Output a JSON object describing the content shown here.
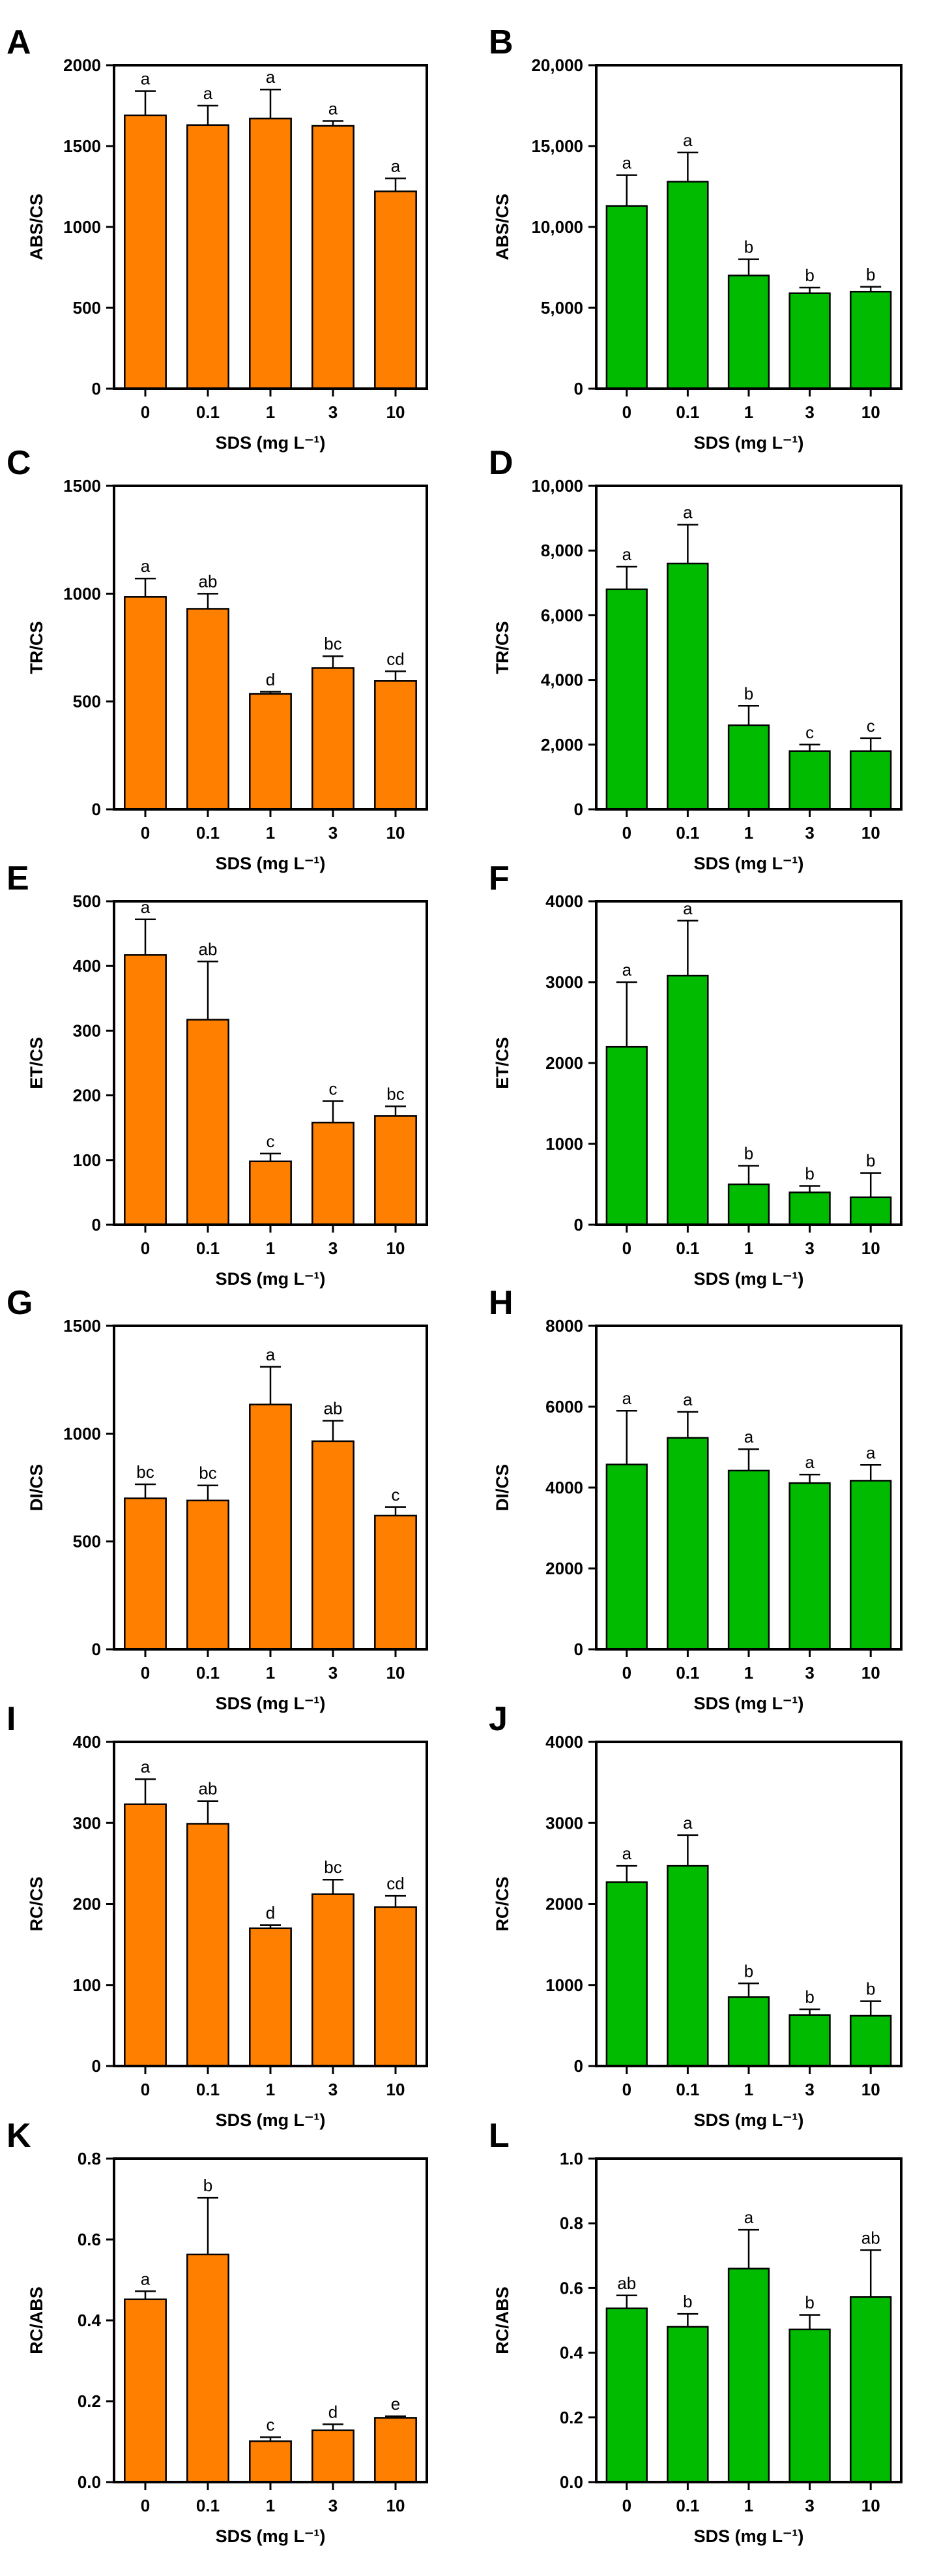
{
  "figure": {
    "x_axis_label": "SDS (mg L⁻¹)",
    "colors": {
      "orange": "#FF7F00",
      "green": "#00BB00",
      "axis": "#000000",
      "error": "#000000"
    }
  },
  "chart_data": [
    {
      "panel": "A",
      "type": "bar",
      "color": "orange",
      "categories": [
        "0",
        "0.1",
        "1",
        "3",
        "10"
      ],
      "values": [
        1690,
        1630,
        1670,
        1625,
        1220
      ],
      "errors": [
        150,
        120,
        180,
        30,
        80
      ],
      "significance": [
        "a",
        "a",
        "a",
        "a",
        "a"
      ],
      "ylabel": "ABS/CS",
      "xlabel": "SDS (mg L⁻¹)",
      "ylim": [
        0,
        2000
      ],
      "yticks": [
        0,
        500,
        1000,
        1500,
        2000
      ],
      "ytick_labels": [
        "0",
        "500",
        "1000",
        "1500",
        "2000"
      ]
    },
    {
      "panel": "B",
      "type": "bar",
      "color": "green",
      "categories": [
        "0",
        "0.1",
        "1",
        "3",
        "10"
      ],
      "values": [
        11300,
        12800,
        7000,
        5900,
        6000
      ],
      "errors": [
        1900,
        1800,
        1000,
        350,
        300
      ],
      "significance": [
        "a",
        "a",
        "b",
        "b",
        "b"
      ],
      "ylabel": "ABS/CS",
      "xlabel": "SDS (mg L⁻¹)",
      "ylim": [
        0,
        20000
      ],
      "yticks": [
        0,
        5000,
        10000,
        15000,
        20000
      ],
      "ytick_labels": [
        "0",
        "5,000",
        "10,000",
        "15,000",
        "20,000"
      ]
    },
    {
      "panel": "C",
      "type": "bar",
      "color": "orange",
      "categories": [
        "0",
        "0.1",
        "1",
        "3",
        "10"
      ],
      "values": [
        985,
        930,
        535,
        655,
        595
      ],
      "errors": [
        85,
        70,
        10,
        55,
        45
      ],
      "significance": [
        "a",
        "ab",
        "d",
        "bc",
        "cd"
      ],
      "ylabel": "TR/CS",
      "xlabel": "SDS (mg L⁻¹)",
      "ylim": [
        0,
        1500
      ],
      "yticks": [
        0,
        500,
        1000,
        1500
      ],
      "ytick_labels": [
        "0",
        "500",
        "1000",
        "1500"
      ]
    },
    {
      "panel": "D",
      "type": "bar",
      "color": "green",
      "categories": [
        "0",
        "0.1",
        "1",
        "3",
        "10"
      ],
      "values": [
        6800,
        7600,
        2600,
        1800,
        1800
      ],
      "errors": [
        700,
        1200,
        600,
        200,
        400
      ],
      "significance": [
        "a",
        "a",
        "b",
        "c",
        "c"
      ],
      "ylabel": "TR/CS",
      "xlabel": "SDS (mg L⁻¹)",
      "ylim": [
        0,
        10000
      ],
      "yticks": [
        0,
        2000,
        4000,
        6000,
        8000,
        10000
      ],
      "ytick_labels": [
        "0",
        "2,000",
        "4,000",
        "6,000",
        "8,000",
        "10,000"
      ]
    },
    {
      "panel": "E",
      "type": "bar",
      "color": "orange",
      "categories": [
        "0",
        "0.1",
        "1",
        "3",
        "10"
      ],
      "values": [
        417,
        317,
        98,
        158,
        168
      ],
      "errors": [
        55,
        90,
        12,
        33,
        15
      ],
      "significance": [
        "a",
        "ab",
        "c",
        "c",
        "bc"
      ],
      "ylabel": "ET/CS",
      "xlabel": "SDS (mg L⁻¹)",
      "ylim": [
        0,
        500
      ],
      "yticks": [
        0,
        100,
        200,
        300,
        400,
        500
      ],
      "ytick_labels": [
        "0",
        "100",
        "200",
        "300",
        "400",
        "500"
      ]
    },
    {
      "panel": "F",
      "type": "bar",
      "color": "green",
      "categories": [
        "0",
        "0.1",
        "1",
        "3",
        "10"
      ],
      "values": [
        2200,
        3080,
        500,
        400,
        340
      ],
      "errors": [
        800,
        680,
        230,
        80,
        300
      ],
      "significance": [
        "a",
        "a",
        "b",
        "b",
        "b"
      ],
      "ylabel": "ET/CS",
      "xlabel": "SDS (mg L⁻¹)",
      "ylim": [
        0,
        4000
      ],
      "yticks": [
        0,
        1000,
        2000,
        3000,
        4000
      ],
      "ytick_labels": [
        "0",
        "1000",
        "2000",
        "3000",
        "4000"
      ]
    },
    {
      "panel": "G",
      "type": "bar",
      "color": "orange",
      "categories": [
        "0",
        "0.1",
        "1",
        "3",
        "10"
      ],
      "values": [
        700,
        690,
        1135,
        965,
        620
      ],
      "errors": [
        65,
        70,
        175,
        95,
        40
      ],
      "significance": [
        "bc",
        "bc",
        "a",
        "ab",
        "c"
      ],
      "ylabel": "DI/CS",
      "xlabel": "SDS (mg L⁻¹)",
      "ylim": [
        0,
        1500
      ],
      "yticks": [
        0,
        500,
        1000,
        1500
      ],
      "ytick_labels": [
        "0",
        "500",
        "1000",
        "1500"
      ]
    },
    {
      "panel": "H",
      "type": "bar",
      "color": "green",
      "categories": [
        "0",
        "0.1",
        "1",
        "3",
        "10"
      ],
      "values": [
        4570,
        5230,
        4420,
        4110,
        4170
      ],
      "errors": [
        1330,
        640,
        530,
        210,
        390
      ],
      "significance": [
        "a",
        "a",
        "a",
        "a",
        "a"
      ],
      "ylabel": "DI/CS",
      "xlabel": "SDS (mg L⁻¹)",
      "ylim": [
        0,
        8000
      ],
      "yticks": [
        0,
        2000,
        4000,
        6000,
        8000
      ],
      "ytick_labels": [
        "0",
        "2000",
        "4000",
        "6000",
        "8000"
      ]
    },
    {
      "panel": "I",
      "type": "bar",
      "color": "orange",
      "categories": [
        "0",
        "0.1",
        "1",
        "3",
        "10"
      ],
      "values": [
        323,
        299,
        170,
        212,
        196
      ],
      "errors": [
        31,
        28,
        4,
        18,
        14
      ],
      "significance": [
        "a",
        "ab",
        "d",
        "bc",
        "cd"
      ],
      "ylabel": "RC/CS",
      "xlabel": "SDS (mg L⁻¹)",
      "ylim": [
        0,
        400
      ],
      "yticks": [
        0,
        100,
        200,
        300,
        400
      ],
      "ytick_labels": [
        "0",
        "100",
        "200",
        "300",
        "400"
      ]
    },
    {
      "panel": "J",
      "type": "bar",
      "color": "green",
      "categories": [
        "0",
        "0.1",
        "1",
        "3",
        "10"
      ],
      "values": [
        2270,
        2470,
        850,
        630,
        620
      ],
      "errors": [
        200,
        380,
        170,
        70,
        180
      ],
      "significance": [
        "a",
        "a",
        "b",
        "b",
        "b"
      ],
      "ylabel": "RC/CS",
      "xlabel": "SDS (mg L⁻¹)",
      "ylim": [
        0,
        4000
      ],
      "yticks": [
        0,
        1000,
        2000,
        3000,
        4000
      ],
      "ytick_labels": [
        "0",
        "1000",
        "2000",
        "3000",
        "4000"
      ]
    },
    {
      "panel": "K",
      "type": "bar",
      "color": "orange",
      "categories": [
        "0",
        "0.1",
        "1",
        "3",
        "10"
      ],
      "values": [
        0.452,
        0.563,
        0.101,
        0.128,
        0.159
      ],
      "errors": [
        0.02,
        0.14,
        0.01,
        0.015,
        0.004
      ],
      "significance": [
        "a",
        "b",
        "c",
        "d",
        "e"
      ],
      "ylabel": "RC/ABS",
      "xlabel": "SDS (mg L⁻¹)",
      "ylim": [
        0,
        0.8
      ],
      "yticks": [
        0,
        0.2,
        0.4,
        0.6,
        0.8
      ],
      "ytick_labels": [
        "0.0",
        "0.2",
        "0.4",
        "0.6",
        "0.8"
      ]
    },
    {
      "panel": "L",
      "type": "bar",
      "color": "green",
      "categories": [
        "0",
        "0.1",
        "1",
        "3",
        "10"
      ],
      "values": [
        0.537,
        0.48,
        0.66,
        0.472,
        0.572
      ],
      "errors": [
        0.04,
        0.04,
        0.12,
        0.045,
        0.145
      ],
      "significance": [
        "ab",
        "b",
        "a",
        "b",
        "ab"
      ],
      "ylabel": "RC/ABS",
      "xlabel": "SDS (mg L⁻¹)",
      "ylim": [
        0,
        1.0
      ],
      "yticks": [
        0,
        0.2,
        0.4,
        0.6,
        0.8,
        1.0
      ],
      "ytick_labels": [
        "0.0",
        "0.2",
        "0.4",
        "0.6",
        "0.8",
        "1.0"
      ]
    }
  ]
}
